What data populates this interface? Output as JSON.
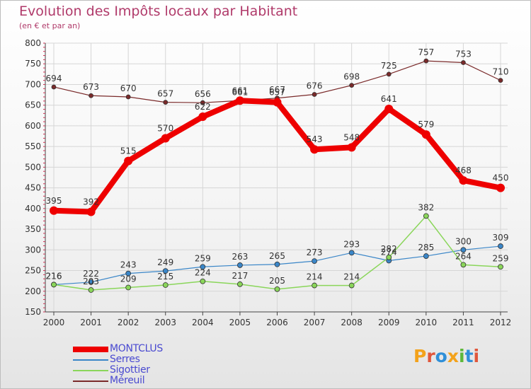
{
  "header": {
    "title": "Evolution des Impôts locaux par Habitant",
    "subtitle": "(en € et par an)"
  },
  "brand": {
    "letters": [
      "P",
      "r",
      "o",
      "x",
      "i",
      "t",
      "i"
    ],
    "colors": [
      "#f3a21b",
      "#e0563b",
      "#2f8fd8",
      "#f3a21b",
      "#5db83a",
      "#2f8fd8",
      "#e0563b"
    ]
  },
  "chart_data": {
    "type": "line",
    "title": "Evolution des Impôts locaux par Habitant",
    "subtitle": "(en € et par an)",
    "xlabel": "",
    "ylabel": "",
    "x": [
      2000,
      2001,
      2002,
      2003,
      2004,
      2005,
      2006,
      2007,
      2008,
      2009,
      2010,
      2011,
      2012
    ],
    "ylim": [
      150,
      800
    ],
    "yticks": [
      150,
      200,
      250,
      300,
      350,
      400,
      450,
      500,
      550,
      600,
      650,
      700,
      750,
      800
    ],
    "grid": true,
    "legend_position": "bottom-left",
    "series": [
      {
        "name": "MONTCLUS",
        "color": "#ee0000",
        "values": [
          395,
          392,
          515,
          570,
          622,
          661,
          657,
          543,
          548,
          641,
          579,
          468,
          450
        ]
      },
      {
        "name": "Serres",
        "color": "#3a86c8",
        "values": [
          216,
          222,
          243,
          249,
          259,
          263,
          265,
          273,
          293,
          274,
          285,
          300,
          309
        ]
      },
      {
        "name": "Sigottier",
        "color": "#8ad65a",
        "values": [
          216,
          203,
          209,
          215,
          224,
          217,
          205,
          214,
          214,
          282,
          382,
          264,
          259
        ]
      },
      {
        "name": "Méreuil",
        "color": "#7a2a2a",
        "values": [
          694,
          673,
          670,
          657,
          656,
          661,
          667,
          676,
          698,
          725,
          757,
          753,
          710
        ]
      }
    ]
  }
}
